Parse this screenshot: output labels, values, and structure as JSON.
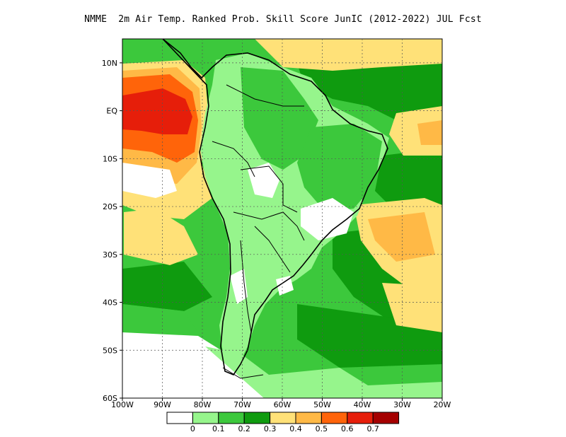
{
  "title": "NMME  2m Air Temp. Ranked Prob. Skill Score JunIC (2012-2022) JUL Fcst",
  "map": {
    "lat_labels": [
      "10N",
      "EQ",
      "10S",
      "20S",
      "30S",
      "40S",
      "50S",
      "60S"
    ],
    "lon_labels": [
      "100W",
      "90W",
      "80W",
      "70W",
      "60W",
      "50W",
      "40W",
      "30W",
      "20W"
    ],
    "lat_range": [
      -60,
      15
    ],
    "lon_range": [
      -100,
      -20
    ]
  },
  "legend": {
    "colors": [
      "#ffffff",
      "#96f58c",
      "#3cc83c",
      "#0f9b0f",
      "#ffe178",
      "#ffb946",
      "#ff640a",
      "#e61e0a",
      "#a50000"
    ],
    "labels": [
      "0",
      "0.1",
      "0.2",
      "0.3",
      "0.4",
      "0.5",
      "0.6",
      "0.7"
    ]
  }
}
